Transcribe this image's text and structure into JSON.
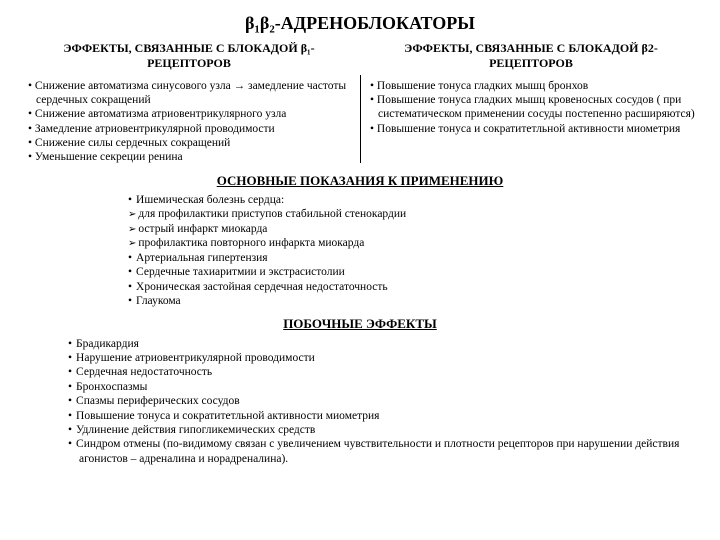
{
  "title": "β₁β₂-АДРЕНОБЛОКАТОРЫ",
  "left": {
    "header": "ЭФФЕКТЫ, СВЯЗАННЫЕ С БЛОКАДОЙ β₁-РЕЦЕПТОРОВ",
    "items": [
      "• Снижение автоматизма синусового узла → замедление частоты сердечных сокращений",
      "• Снижение автоматизма атриовентрикулярного узла",
      "• Замедление атриовентрикулярной проводимости",
      "• Снижение силы сердечных сокращений",
      "• Уменьшение секреции ренина"
    ]
  },
  "right": {
    "header": "ЭФФЕКТЫ, СВЯЗАННЫЕ С БЛОКАДОЙ β2-РЕЦЕПТОРОВ",
    "items": [
      "• Повышение тонуса гладких мышц бронхов",
      "• Повышение тонуса гладких мышц кровеносных сосудов ( при систематическом применении сосуды постепенно расширяются)",
      "• Повышение тонуса и  сократитетльной активности миометрия"
    ]
  },
  "indications_title": "ОСНОВНЫЕ ПОКАЗАНИЯ К ПРИМЕНЕНИЮ",
  "indications": [
    {
      "t": "dot",
      "text": "Ишемическая болезнь сердца:"
    },
    {
      "t": "arrow",
      "text": "для профилактики приступов стабильной стенокардии"
    },
    {
      "t": "arrow",
      "text": "острый инфаркт миокарда"
    },
    {
      "t": "arrow",
      "text": "профилактика повторного инфаркта миокарда"
    },
    {
      "t": "dot",
      "text": "Артериальная гипертензия"
    },
    {
      "t": "dot",
      "text": "Сердечные тахиаритмии и экстрасистолии"
    },
    {
      "t": "dot",
      "text": "Хроническая застойная сердечная недостаточность"
    },
    {
      "t": "dot",
      "text": "Глаукома"
    }
  ],
  "side_title": "ПОБОЧНЫЕ ЭФФЕКТЫ",
  "side_effects": [
    "Брадикардия",
    "Нарушение атриовентрикулярной проводимости",
    "Сердечная недостаточность",
    "Бронхоспазмы",
    "Спазмы периферических сосудов",
    "Повышение тонуса и  сократитетльной активности миометрия",
    "Удлинение действия гипогликемических средств",
    "Синдром отмены (по-видимому связан с увеличением чувствительности и плотности рецепторов при нарушении действия агонистов – адреналина и норадреналина)."
  ]
}
